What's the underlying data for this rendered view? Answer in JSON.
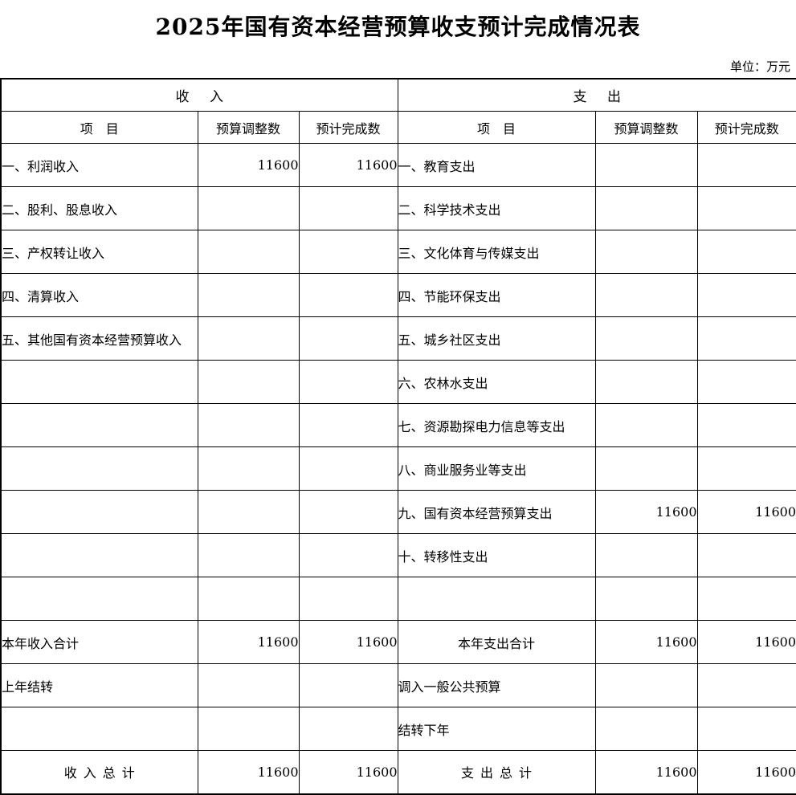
{
  "title": "2025年国有资本经营预算收支预计完成情况表",
  "unit_label": "单位：万元",
  "table": {
    "section_headers": {
      "revenue": "收　 入",
      "expenditure": "支　 出"
    },
    "column_headers": {
      "item": "项　目",
      "budget_adjusted": "预算调整数",
      "estimated_completion": "预计完成数"
    },
    "rows": [
      {
        "left": {
          "item": "一、利润收入",
          "budget": "11600",
          "estimated": "11600"
        },
        "right": {
          "item": "一、教育支出",
          "budget": "",
          "estimated": ""
        }
      },
      {
        "left": {
          "item": "二、股利、股息收入",
          "budget": "",
          "estimated": ""
        },
        "right": {
          "item": "二、科学技术支出",
          "budget": "",
          "estimated": ""
        }
      },
      {
        "left": {
          "item": "三、产权转让收入",
          "budget": "",
          "estimated": ""
        },
        "right": {
          "item": "三、文化体育与传媒支出",
          "budget": "",
          "estimated": ""
        }
      },
      {
        "left": {
          "item": "四、清算收入",
          "budget": "",
          "estimated": ""
        },
        "right": {
          "item": "四、节能环保支出",
          "budget": "",
          "estimated": ""
        }
      },
      {
        "left": {
          "item": "五、其他国有资本经营预算收入",
          "budget": "",
          "estimated": ""
        },
        "right": {
          "item": "五、城乡社区支出",
          "budget": "",
          "estimated": ""
        }
      },
      {
        "left": {
          "item": "",
          "budget": "",
          "estimated": ""
        },
        "right": {
          "item": "六、农林水支出",
          "budget": "",
          "estimated": ""
        }
      },
      {
        "left": {
          "item": "",
          "budget": "",
          "estimated": ""
        },
        "right": {
          "item": "七、资源勘探电力信息等支出",
          "budget": "",
          "estimated": ""
        }
      },
      {
        "left": {
          "item": "",
          "budget": "",
          "estimated": ""
        },
        "right": {
          "item": "八、商业服务业等支出",
          "budget": "",
          "estimated": ""
        }
      },
      {
        "left": {
          "item": "",
          "budget": "",
          "estimated": ""
        },
        "right": {
          "item": "九、国有资本经营预算支出",
          "budget": "11600",
          "estimated": "11600"
        }
      },
      {
        "left": {
          "item": "",
          "budget": "",
          "estimated": ""
        },
        "right": {
          "item": "十、转移性支出",
          "budget": "",
          "estimated": ""
        }
      },
      {
        "left": {
          "item": "",
          "budget": "",
          "estimated": ""
        },
        "right": {
          "item": "",
          "budget": "",
          "estimated": ""
        }
      },
      {
        "left": {
          "item": "本年收入合计",
          "budget": "11600",
          "estimated": "11600"
        },
        "right": {
          "item": "本年支出合计",
          "item_align": "center",
          "budget": "11600",
          "estimated": "11600"
        }
      },
      {
        "left": {
          "item": "上年结转",
          "budget": "",
          "estimated": ""
        },
        "right": {
          "item": "调入一般公共预算",
          "budget": "",
          "estimated": ""
        }
      },
      {
        "left": {
          "item": "",
          "budget": "",
          "estimated": ""
        },
        "right": {
          "item": "结转下年",
          "budget": "",
          "estimated": ""
        }
      },
      {
        "left": {
          "item": "收 入 总 计",
          "item_align": "center",
          "budget": "11600",
          "estimated": "11600"
        },
        "right": {
          "item": "支 出 总 计",
          "item_align": "center",
          "budget": "11600",
          "estimated": "11600"
        }
      }
    ]
  }
}
